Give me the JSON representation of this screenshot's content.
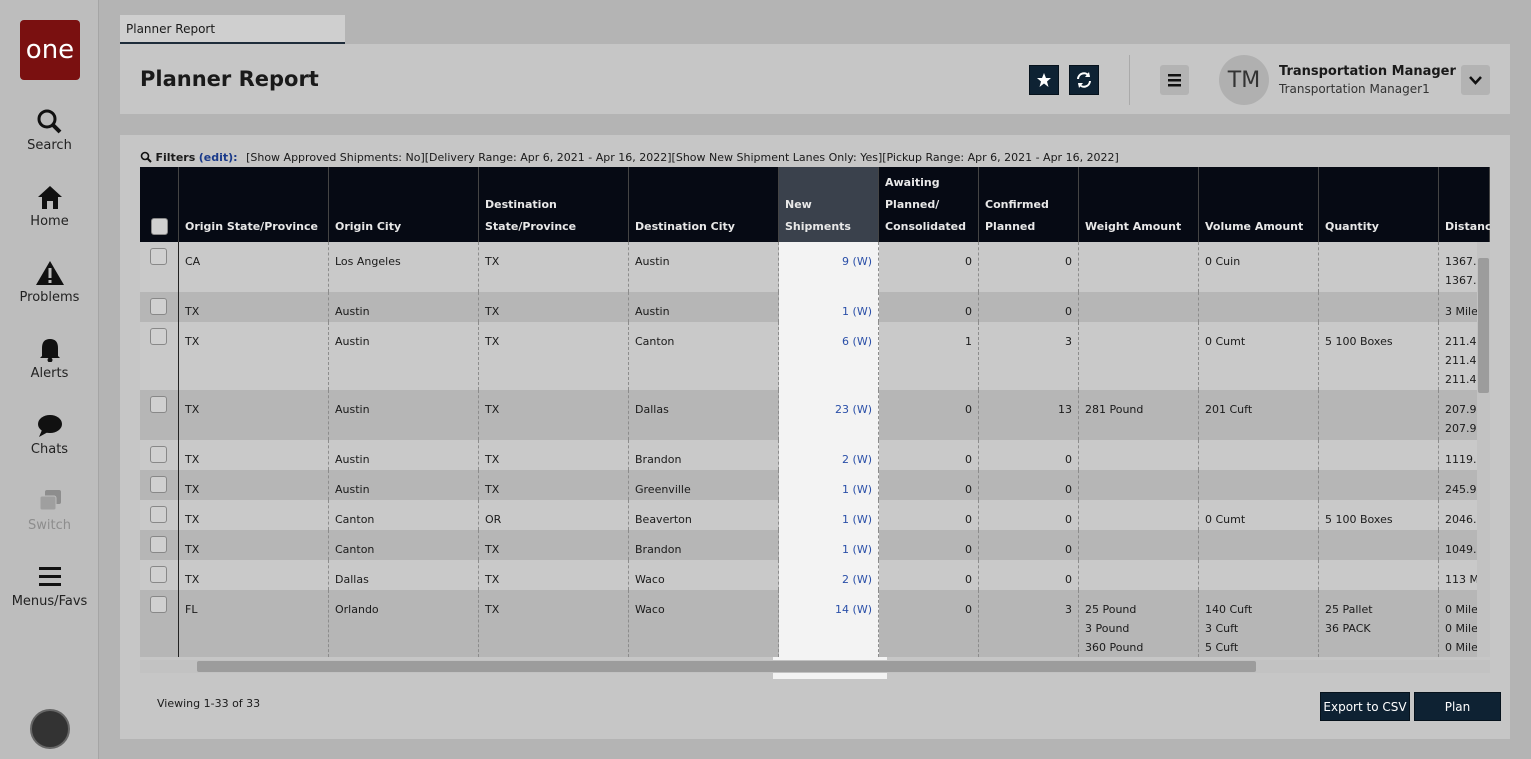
{
  "sidebar": {
    "logo": "one",
    "items": [
      "Search",
      "Home",
      "Problems",
      "Alerts",
      "Chats",
      "Switch",
      "Menus/Favs"
    ]
  },
  "tab": "Planner Report",
  "header": {
    "title": "Planner Report",
    "user": {
      "initials": "TM",
      "name": "Transportation Manager",
      "role": "Transportation Manager1"
    }
  },
  "filters": {
    "label": "Filters",
    "edit": "(edit):",
    "text": "[Show Approved Shipments: No][Delivery Range: Apr 6, 2021 - Apr 16, 2022][Show New Shipment Lanes Only: Yes][Pickup Range: Apr 6, 2021 - Apr 16, 2022]"
  },
  "table": {
    "columns": [
      "Origin State/Province",
      "Origin City",
      "Destination State/Province",
      "Destination City",
      "New Shipments",
      "Awaiting Planned/ Consolidated",
      "Confirmed Planned",
      "Weight Amount",
      "Volume Amount",
      "Quantity",
      "Distance"
    ],
    "rows": [
      [
        "CA",
        "Los Angeles",
        "TX",
        "Austin",
        "9 (W)",
        0,
        0,
        null,
        "0 Cuin",
        null,
        [
          "1367.",
          "1367."
        ]
      ],
      [
        "TX",
        "Austin",
        "TX",
        "Austin",
        "1 (W)",
        0,
        0,
        null,
        null,
        null,
        [
          "3 Mile"
        ]
      ],
      [
        "TX",
        "Austin",
        "TX",
        "Canton",
        "6 (W)",
        1,
        3,
        null,
        "0 Cumt",
        "5 100 Boxes",
        [
          "211.4",
          "211.4",
          "211.4"
        ]
      ],
      [
        "TX",
        "Austin",
        "TX",
        "Dallas",
        "23 (W)",
        0,
        13,
        "281 Pound",
        "201 Cuft",
        null,
        [
          "207.9",
          "207.9"
        ]
      ],
      [
        "TX",
        "Austin",
        "TX",
        "Brandon",
        "2 (W)",
        0,
        0,
        null,
        null,
        null,
        [
          "1119."
        ]
      ],
      [
        "TX",
        "Austin",
        "TX",
        "Greenville",
        "1 (W)",
        0,
        0,
        null,
        null,
        null,
        [
          "245.9"
        ]
      ],
      [
        "TX",
        "Canton",
        "OR",
        "Beaverton",
        "1 (W)",
        0,
        0,
        null,
        "0 Cumt",
        "5 100 Boxes",
        [
          "2046."
        ]
      ],
      [
        "TX",
        "Canton",
        "TX",
        "Brandon",
        "1 (W)",
        0,
        0,
        null,
        null,
        null,
        [
          "1049."
        ]
      ],
      [
        "TX",
        "Dallas",
        "TX",
        "Waco",
        "2 (W)",
        0,
        0,
        null,
        null,
        null,
        [
          "113 M"
        ]
      ],
      [
        "FL",
        "Orlando",
        "TX",
        "Waco",
        "14 (W)",
        0,
        3,
        [
          "25 Pound",
          "3 Pound",
          "360 Pound"
        ],
        [
          "140 Cuft",
          "3 Cuft",
          "5 Cuft"
        ],
        [
          "25 Pallet",
          "36 PACK"
        ],
        [
          "0 Mile",
          "0 Mile",
          "0 Mile"
        ]
      ]
    ]
  },
  "footer": {
    "viewing": "Viewing 1-33 of 33",
    "buttons": [
      "Export to CSV",
      "Plan"
    ]
  }
}
